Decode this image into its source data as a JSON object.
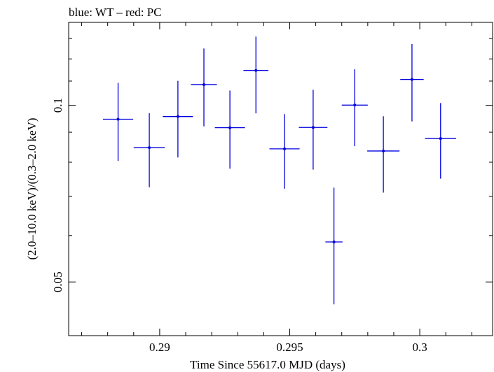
{
  "chart_data": {
    "type": "scatter",
    "title": "blue: WT – red: PC",
    "xlabel": "Time Since 55617.0 MJD (days)",
    "ylabel": "(2.0–10.0 keV)/(0.3–2.0 keV)",
    "xlim": [
      0.2865,
      0.3028
    ],
    "ylim": [
      0.0405,
      0.1385
    ],
    "y_scale": "log",
    "x_ticks": [
      0.29,
      0.295,
      0.3
    ],
    "x_tick_labels": [
      "0.29",
      "0.295",
      "0.3"
    ],
    "y_ticks": [
      0.05,
      0.1
    ],
    "y_tick_labels": [
      "0.05",
      "0.1"
    ],
    "grid": false,
    "series": [
      {
        "color": "#0000e0",
        "points": [
          {
            "x": 0.2884,
            "y": 0.0947,
            "xerr": 0.00058,
            "ylo": 0.0804,
            "yhi": 0.1092
          },
          {
            "x": 0.2896,
            "y": 0.0847,
            "xerr": 0.0006,
            "ylo": 0.0725,
            "yhi": 0.097
          },
          {
            "x": 0.2907,
            "y": 0.0957,
            "xerr": 0.00058,
            "ylo": 0.0815,
            "yhi": 0.1101
          },
          {
            "x": 0.2917,
            "y": 0.1085,
            "xerr": 0.0005,
            "ylo": 0.0921,
            "yhi": 0.125
          },
          {
            "x": 0.2927,
            "y": 0.0916,
            "xerr": 0.00058,
            "ylo": 0.078,
            "yhi": 0.106
          },
          {
            "x": 0.2937,
            "y": 0.1147,
            "xerr": 0.00048,
            "ylo": 0.0969,
            "yhi": 0.131
          },
          {
            "x": 0.2948,
            "y": 0.0843,
            "xerr": 0.00058,
            "ylo": 0.0721,
            "yhi": 0.0966
          },
          {
            "x": 0.2959,
            "y": 0.0917,
            "xerr": 0.00055,
            "ylo": 0.0777,
            "yhi": 0.1063
          },
          {
            "x": 0.2967,
            "y": 0.0585,
            "xerr": 0.00033,
            "ylo": 0.0458,
            "yhi": 0.0724
          },
          {
            "x": 0.2975,
            "y": 0.1001,
            "xerr": 0.0005,
            "ylo": 0.0852,
            "yhi": 0.1152
          },
          {
            "x": 0.2986,
            "y": 0.0836,
            "xerr": 0.00062,
            "ylo": 0.071,
            "yhi": 0.0958
          },
          {
            "x": 0.2997,
            "y": 0.1107,
            "xerr": 0.00045,
            "ylo": 0.0939,
            "yhi": 0.1272
          },
          {
            "x": 0.3008,
            "y": 0.0878,
            "xerr": 0.0006,
            "ylo": 0.075,
            "yhi": 0.1009
          }
        ]
      }
    ]
  }
}
